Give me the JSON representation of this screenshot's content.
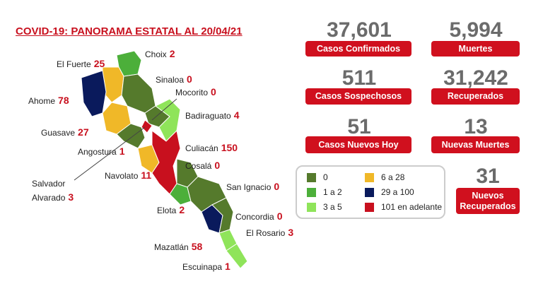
{
  "title": "COVID-19: PANORAMA ESTATAL AL 20/04/21",
  "municipalities": [
    {
      "name": "El Fuerte",
      "value": 25
    },
    {
      "name": "Choix",
      "value": 2
    },
    {
      "name": "Sinaloa",
      "value": 0
    },
    {
      "name": "Mocorito",
      "value": 0
    },
    {
      "name": "Ahome",
      "value": 78
    },
    {
      "name": "Badiraguato",
      "value": 4
    },
    {
      "name": "Guasave",
      "value": 27
    },
    {
      "name": "Angostura",
      "value": 1
    },
    {
      "name": "Culiacán",
      "value": 150
    },
    {
      "name": "Cosalá",
      "value": 0
    },
    {
      "name": "Navolato",
      "value": 11
    },
    {
      "name": "Salvador Alvarado",
      "value": 3
    },
    {
      "name": "San Ignacio",
      "value": 0
    },
    {
      "name": "Elota",
      "value": 2
    },
    {
      "name": "Concordia",
      "value": 0
    },
    {
      "name": "El Rosario",
      "value": 3
    },
    {
      "name": "Mazatlán",
      "value": 58
    },
    {
      "name": "Escuinapa",
      "value": 1
    }
  ],
  "stats": [
    {
      "value": "37,601",
      "label": "Casos Confirmados"
    },
    {
      "value": "5,994",
      "label": "Muertes"
    },
    {
      "value": "511",
      "label": "Casos Sospechosos"
    },
    {
      "value": "31,242",
      "label": "Recuperados"
    },
    {
      "value": "51",
      "label": "Casos Nuevos Hoy"
    },
    {
      "value": "13",
      "label": "Nuevas Muertes"
    },
    {
      "value": "31",
      "label": "Nuevos Recuperados"
    }
  ],
  "legend": [
    {
      "label": "0",
      "color": "#557a2c"
    },
    {
      "label": "1 a 2",
      "color": "#4caf3a"
    },
    {
      "label": "3 a 5",
      "color": "#8fe45a"
    },
    {
      "label": "6 a 28",
      "color": "#f0b828"
    },
    {
      "label": "29 a 100",
      "color": "#0a1a5c"
    },
    {
      "label": "101 en adelante",
      "color": "#c8101e"
    }
  ]
}
